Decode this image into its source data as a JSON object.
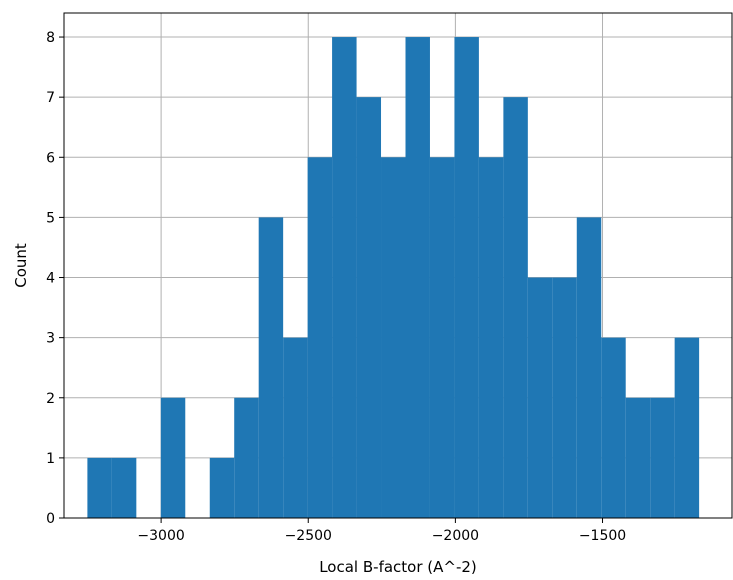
{
  "chart_data": {
    "type": "bar",
    "title": "",
    "xlabel": "Local B-factor (A^-2)",
    "ylabel": "Count",
    "xlim": [
      -3330,
      -1060
    ],
    "ylim": [
      0,
      8.4
    ],
    "grid": true,
    "bar_color": "#1f77b4",
    "x_ticks": [
      {
        "value": -3000,
        "label": "−3000"
      },
      {
        "value": -2500,
        "label": "−2500"
      },
      {
        "value": -2000,
        "label": "−2000"
      },
      {
        "value": -1500,
        "label": "−1500"
      }
    ],
    "y_ticks": [
      {
        "value": 0,
        "label": "0"
      },
      {
        "value": 1,
        "label": "1"
      },
      {
        "value": 2,
        "label": "2"
      },
      {
        "value": 3,
        "label": "3"
      },
      {
        "value": 4,
        "label": "4"
      },
      {
        "value": 5,
        "label": "5"
      },
      {
        "value": 6,
        "label": "6"
      },
      {
        "value": 7,
        "label": "7"
      },
      {
        "value": 8,
        "label": "8"
      }
    ],
    "bin_edges": [
      -3250.5,
      -3167.3,
      -3084.2,
      -3001.0,
      -2917.9,
      -2834.7,
      -2751.6,
      -2668.4,
      -2585.3,
      -2502.1,
      -2419.0,
      -2335.8,
      -2252.7,
      -2169.5,
      -2086.4,
      -2003.2,
      -1920.1,
      -1836.9,
      -1753.8,
      -1670.6,
      -1587.5,
      -1504.3,
      -1421.2,
      -1338.0,
      -1254.9,
      -1171.7
    ],
    "counts": [
      1,
      1,
      0,
      2,
      0,
      1,
      2,
      5,
      3,
      6,
      8,
      7,
      6,
      8,
      6,
      8,
      6,
      7,
      4,
      4,
      5,
      3,
      2,
      2,
      3
    ]
  }
}
